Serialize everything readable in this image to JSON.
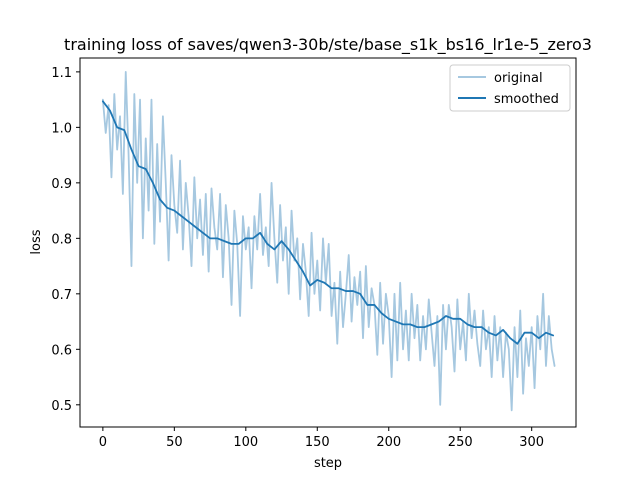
{
  "chart_data": {
    "type": "line",
    "title": "training loss of saves/qwen3-30b/ste/base_s1k_bs16_lr1e-5_zero3",
    "xlabel": "step",
    "ylabel": "loss",
    "xlim": [
      -16,
      331
    ],
    "ylim": [
      0.46,
      1.125
    ],
    "xticks": [
      0,
      50,
      100,
      150,
      200,
      250,
      300
    ],
    "yticks": [
      0.5,
      0.6,
      0.7,
      0.8,
      0.9,
      1.0,
      1.1
    ],
    "ytick_labels": [
      "0.5",
      "0.6",
      "0.7",
      "0.8",
      "0.9",
      "1.0",
      "1.1"
    ],
    "grid": false,
    "legend_position": "top-right",
    "series": [
      {
        "name": "original",
        "color": "#a6c8e0",
        "x": [
          0,
          2,
          4,
          6,
          8,
          10,
          12,
          14,
          16,
          18,
          20,
          22,
          24,
          26,
          28,
          30,
          32,
          34,
          36,
          38,
          40,
          42,
          44,
          46,
          48,
          50,
          52,
          54,
          56,
          58,
          60,
          62,
          64,
          66,
          68,
          70,
          72,
          74,
          76,
          78,
          80,
          82,
          84,
          86,
          88,
          90,
          92,
          94,
          96,
          98,
          100,
          102,
          104,
          106,
          108,
          110,
          112,
          114,
          116,
          118,
          120,
          122,
          124,
          126,
          128,
          130,
          132,
          134,
          136,
          138,
          140,
          142,
          144,
          146,
          148,
          150,
          152,
          154,
          156,
          158,
          160,
          162,
          164,
          166,
          168,
          170,
          172,
          174,
          176,
          178,
          180,
          182,
          184,
          186,
          188,
          190,
          192,
          194,
          196,
          198,
          200,
          202,
          204,
          206,
          208,
          210,
          212,
          214,
          216,
          218,
          220,
          222,
          224,
          226,
          228,
          230,
          232,
          234,
          236,
          238,
          240,
          242,
          244,
          246,
          248,
          250,
          252,
          254,
          256,
          258,
          260,
          262,
          264,
          266,
          268,
          270,
          272,
          274,
          276,
          278,
          280,
          282,
          284,
          286,
          288,
          290,
          292,
          294,
          296,
          298,
          300,
          302,
          304,
          306,
          308,
          310,
          312,
          314,
          316
        ],
        "values": [
          1.05,
          0.99,
          1.04,
          0.91,
          1.06,
          0.96,
          1.02,
          0.88,
          1.1,
          0.95,
          0.75,
          1.06,
          0.9,
          1.05,
          0.8,
          0.98,
          0.85,
          1.05,
          0.79,
          0.97,
          0.83,
          1.02,
          0.9,
          0.76,
          0.95,
          0.86,
          0.81,
          0.94,
          0.78,
          0.9,
          0.84,
          0.75,
          0.91,
          0.8,
          0.87,
          0.77,
          0.88,
          0.74,
          0.89,
          0.82,
          0.78,
          0.88,
          0.73,
          0.86,
          0.8,
          0.68,
          0.85,
          0.79,
          0.66,
          0.84,
          0.78,
          0.82,
          0.71,
          0.84,
          0.78,
          0.88,
          0.77,
          0.82,
          0.75,
          0.9,
          0.8,
          0.72,
          0.86,
          0.76,
          0.82,
          0.7,
          0.85,
          0.76,
          0.8,
          0.69,
          0.79,
          0.74,
          0.66,
          0.81,
          0.7,
          0.76,
          0.67,
          0.8,
          0.72,
          0.79,
          0.66,
          0.72,
          0.61,
          0.74,
          0.64,
          0.7,
          0.77,
          0.65,
          0.73,
          0.68,
          0.74,
          0.62,
          0.75,
          0.64,
          0.71,
          0.68,
          0.59,
          0.72,
          0.61,
          0.7,
          0.66,
          0.55,
          0.7,
          0.58,
          0.72,
          0.6,
          0.67,
          0.58,
          0.7,
          0.62,
          0.68,
          0.58,
          0.66,
          0.6,
          0.69,
          0.63,
          0.57,
          0.66,
          0.5,
          0.68,
          0.6,
          0.68,
          0.64,
          0.56,
          0.69,
          0.6,
          0.65,
          0.58,
          0.7,
          0.62,
          0.67,
          0.61,
          0.57,
          0.67,
          0.6,
          0.64,
          0.55,
          0.66,
          0.58,
          0.64,
          0.55,
          0.63,
          0.6,
          0.49,
          0.64,
          0.55,
          0.67,
          0.52,
          0.62,
          0.57,
          0.64,
          0.53,
          0.66,
          0.6,
          0.7,
          0.57,
          0.66,
          0.6,
          0.57
        ]
      },
      {
        "name": "smoothed",
        "color": "#1f77b4",
        "x": [
          0,
          5,
          10,
          15,
          20,
          25,
          30,
          35,
          40,
          45,
          50,
          55,
          60,
          65,
          70,
          75,
          80,
          85,
          90,
          95,
          100,
          105,
          110,
          115,
          120,
          125,
          130,
          135,
          140,
          145,
          150,
          155,
          160,
          165,
          170,
          175,
          180,
          185,
          190,
          195,
          200,
          205,
          210,
          215,
          220,
          225,
          230,
          235,
          240,
          245,
          250,
          255,
          260,
          265,
          270,
          275,
          280,
          285,
          290,
          295,
          300,
          305,
          310,
          315
        ],
        "values": [
          1.047,
          1.03,
          1.0,
          0.995,
          0.96,
          0.93,
          0.925,
          0.9,
          0.87,
          0.855,
          0.85,
          0.84,
          0.83,
          0.82,
          0.81,
          0.8,
          0.8,
          0.795,
          0.79,
          0.79,
          0.8,
          0.8,
          0.81,
          0.79,
          0.78,
          0.795,
          0.78,
          0.76,
          0.74,
          0.715,
          0.725,
          0.72,
          0.71,
          0.71,
          0.705,
          0.705,
          0.7,
          0.68,
          0.68,
          0.665,
          0.655,
          0.65,
          0.645,
          0.645,
          0.64,
          0.64,
          0.645,
          0.65,
          0.66,
          0.655,
          0.655,
          0.645,
          0.64,
          0.64,
          0.63,
          0.625,
          0.635,
          0.62,
          0.61,
          0.63,
          0.63,
          0.62,
          0.63,
          0.625
        ]
      }
    ]
  }
}
